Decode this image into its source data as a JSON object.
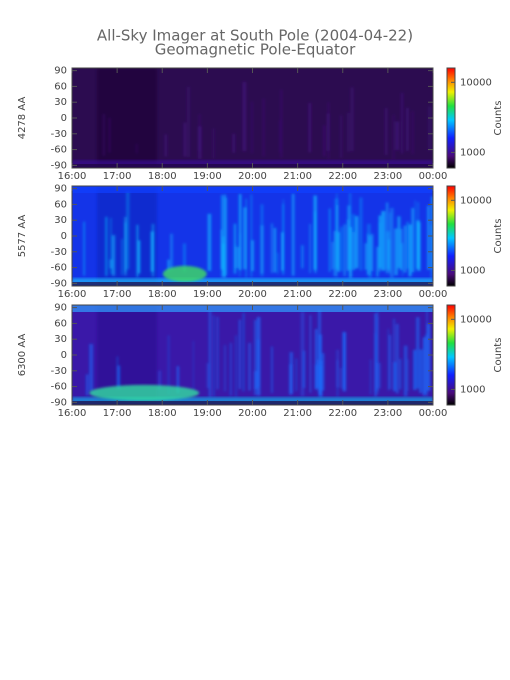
{
  "page": {
    "title": "All-Sky Imager at South Pole (2004-04-22)",
    "subtitle": "Geomagnetic Pole-Equator"
  },
  "chart_data": [
    {
      "type": "heatmap",
      "ylabel": "4278 AA",
      "xlim": [
        16,
        24
      ],
      "xticks": [
        {
          "value": 16,
          "label": "16:00"
        },
        {
          "value": 17,
          "label": "17:00"
        },
        {
          "value": 18,
          "label": "18:00"
        },
        {
          "value": 19,
          "label": "19:00"
        },
        {
          "value": 20,
          "label": "20:00"
        },
        {
          "value": 21,
          "label": "21:00"
        },
        {
          "value": 22,
          "label": "22:00"
        },
        {
          "value": 23,
          "label": "23:00"
        },
        {
          "value": 24,
          "label": "00:00"
        }
      ],
      "ylim": [
        -95,
        95
      ],
      "yticks": [
        -90,
        -60,
        -30,
        0,
        30,
        60,
        90
      ],
      "colorbar": {
        "label": "Counts",
        "log": true,
        "lim": [
          600,
          16000
        ],
        "ticks": [
          1000,
          10000
        ]
      }
    },
    {
      "type": "heatmap",
      "ylabel": "5577 AA",
      "xlim": [
        16,
        24
      ],
      "xticks": [
        {
          "value": 16,
          "label": "16:00"
        },
        {
          "value": 17,
          "label": "17:00"
        },
        {
          "value": 18,
          "label": "18:00"
        },
        {
          "value": 19,
          "label": "19:00"
        },
        {
          "value": 20,
          "label": "20:00"
        },
        {
          "value": 21,
          "label": "21:00"
        },
        {
          "value": 22,
          "label": "22:00"
        },
        {
          "value": 23,
          "label": "23:00"
        },
        {
          "value": 24,
          "label": "00:00"
        }
      ],
      "ylim": [
        -95,
        95
      ],
      "yticks": [
        -90,
        -60,
        -30,
        0,
        30,
        60,
        90
      ],
      "colorbar": {
        "label": "Counts",
        "log": true,
        "lim": [
          600,
          16000
        ],
        "ticks": [
          1000,
          10000
        ]
      }
    },
    {
      "type": "heatmap",
      "ylabel": "6300 AA",
      "xlim": [
        16,
        24
      ],
      "xticks": [
        {
          "value": 16,
          "label": "16:00"
        },
        {
          "value": 17,
          "label": "17:00"
        },
        {
          "value": 18,
          "label": "18:00"
        },
        {
          "value": 19,
          "label": "19:00"
        },
        {
          "value": 20,
          "label": "20:00"
        },
        {
          "value": 21,
          "label": "21:00"
        },
        {
          "value": 22,
          "label": "22:00"
        },
        {
          "value": 23,
          "label": "23:00"
        },
        {
          "value": 24,
          "label": "00:00"
        }
      ],
      "ylim": [
        -95,
        95
      ],
      "yticks": [
        -90,
        -60,
        -30,
        0,
        30,
        60,
        90
      ],
      "colorbar": {
        "label": "Counts",
        "log": true,
        "lim": [
          600,
          16000
        ],
        "ticks": [
          1000,
          10000
        ]
      }
    }
  ]
}
